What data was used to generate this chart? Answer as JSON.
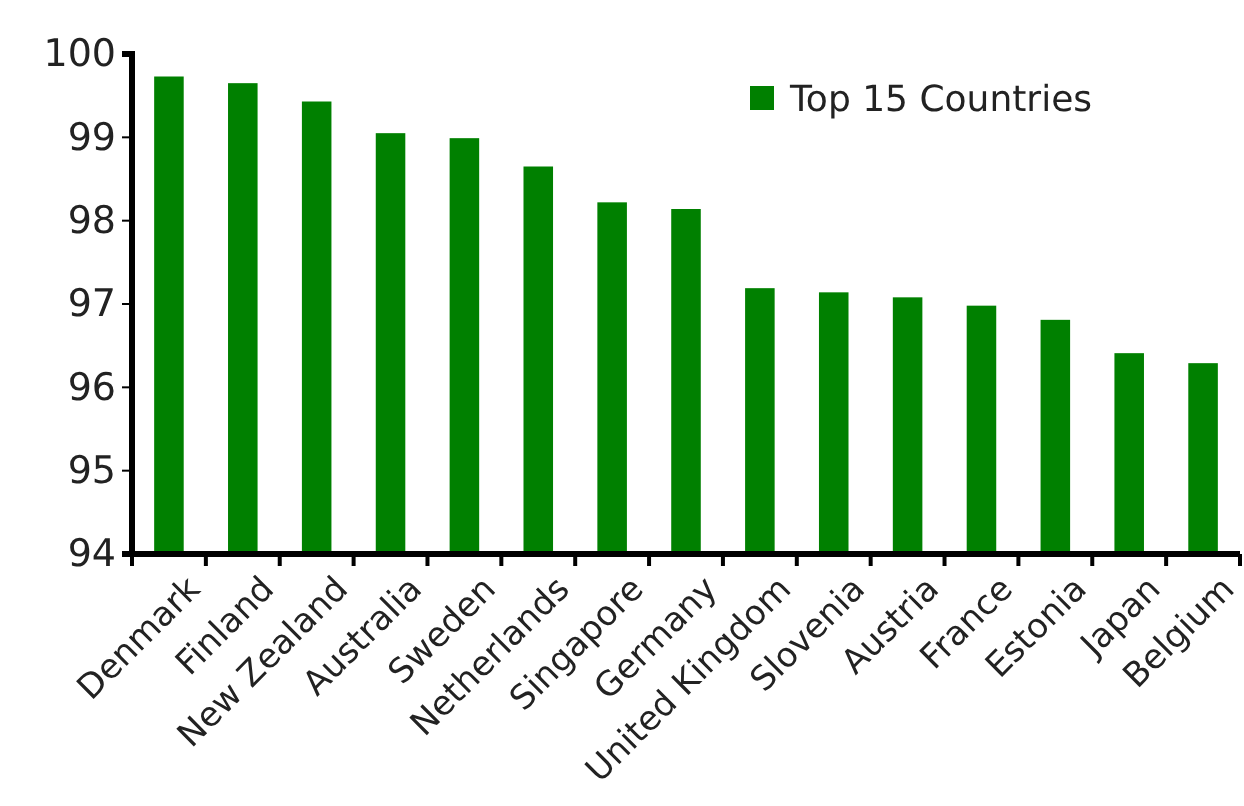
{
  "chart_data": {
    "type": "bar",
    "categories": [
      "Denmark",
      "Finland",
      "New Zealand",
      "Australia",
      "Sweden",
      "Netherlands",
      "Singapore",
      "Germany",
      "United Kingdom",
      "Slovenia",
      "Austria",
      "France",
      "Estonia",
      "Japan",
      "Belgium"
    ],
    "series": [
      {
        "name": "Top 15 Countries",
        "color": "#008000",
        "values": [
          99.73,
          99.65,
          99.43,
          99.05,
          98.99,
          98.65,
          98.22,
          98.14,
          97.19,
          97.14,
          97.08,
          96.98,
          96.81,
          96.41,
          96.29
        ]
      }
    ],
    "ylim": [
      94,
      100
    ],
    "yticks": [
      94,
      95,
      96,
      97,
      98,
      99,
      100
    ],
    "grid": false,
    "legend": "top right"
  }
}
